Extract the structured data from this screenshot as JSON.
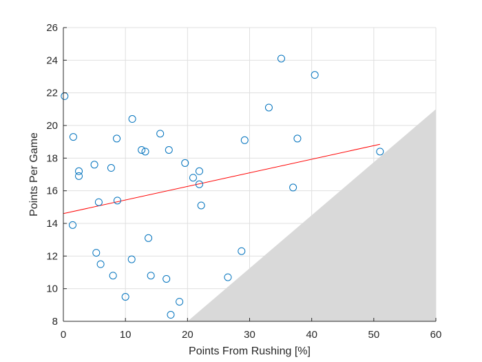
{
  "chart_data": {
    "type": "scatter",
    "xlabel": "Points From Rushing [%]",
    "ylabel": "Points Per Game",
    "xlim": [
      0,
      60
    ],
    "ylim": [
      8,
      26
    ],
    "xticks": [
      0,
      10,
      20,
      30,
      40,
      50,
      60
    ],
    "yticks": [
      8,
      10,
      12,
      14,
      16,
      18,
      20,
      22,
      24,
      26
    ],
    "grid": true,
    "series": [
      {
        "marker": "circle",
        "points": [
          {
            "x": 0.2,
            "y": 21.8
          },
          {
            "x": 1.6,
            "y": 19.3
          },
          {
            "x": 1.5,
            "y": 13.9
          },
          {
            "x": 2.5,
            "y": 17.2
          },
          {
            "x": 2.5,
            "y": 16.9
          },
          {
            "x": 5.0,
            "y": 17.6
          },
          {
            "x": 5.3,
            "y": 12.2
          },
          {
            "x": 5.7,
            "y": 15.3
          },
          {
            "x": 6.0,
            "y": 11.5
          },
          {
            "x": 7.7,
            "y": 17.4
          },
          {
            "x": 8.0,
            "y": 10.8
          },
          {
            "x": 8.6,
            "y": 19.2
          },
          {
            "x": 8.7,
            "y": 15.4
          },
          {
            "x": 10.0,
            "y": 9.5
          },
          {
            "x": 11.0,
            "y": 11.8
          },
          {
            "x": 11.1,
            "y": 20.4
          },
          {
            "x": 12.6,
            "y": 18.5
          },
          {
            "x": 13.2,
            "y": 18.4
          },
          {
            "x": 13.7,
            "y": 13.1
          },
          {
            "x": 14.1,
            "y": 10.8
          },
          {
            "x": 15.6,
            "y": 19.5
          },
          {
            "x": 16.6,
            "y": 10.6
          },
          {
            "x": 17.0,
            "y": 18.5
          },
          {
            "x": 17.3,
            "y": 8.4
          },
          {
            "x": 18.7,
            "y": 9.2
          },
          {
            "x": 19.6,
            "y": 17.7
          },
          {
            "x": 20.9,
            "y": 16.8
          },
          {
            "x": 21.9,
            "y": 17.2
          },
          {
            "x": 21.9,
            "y": 16.4
          },
          {
            "x": 22.2,
            "y": 15.1
          },
          {
            "x": 26.5,
            "y": 10.7
          },
          {
            "x": 28.7,
            "y": 12.3
          },
          {
            "x": 29.2,
            "y": 19.1
          },
          {
            "x": 33.1,
            "y": 21.1
          },
          {
            "x": 35.1,
            "y": 24.1
          },
          {
            "x": 37.0,
            "y": 16.2
          },
          {
            "x": 37.7,
            "y": 19.2
          },
          {
            "x": 40.5,
            "y": 23.1
          },
          {
            "x": 51.0,
            "y": 18.4
          }
        ],
        "color": "#0072bd"
      }
    ],
    "fit_line": {
      "x": [
        0,
        51
      ],
      "y": [
        14.6,
        18.85
      ],
      "color": "#ff0000"
    },
    "shaded_region": {
      "points": [
        [
          20,
          8
        ],
        [
          60,
          21
        ],
        [
          60,
          8
        ]
      ],
      "color": "#d9d9d9"
    }
  }
}
